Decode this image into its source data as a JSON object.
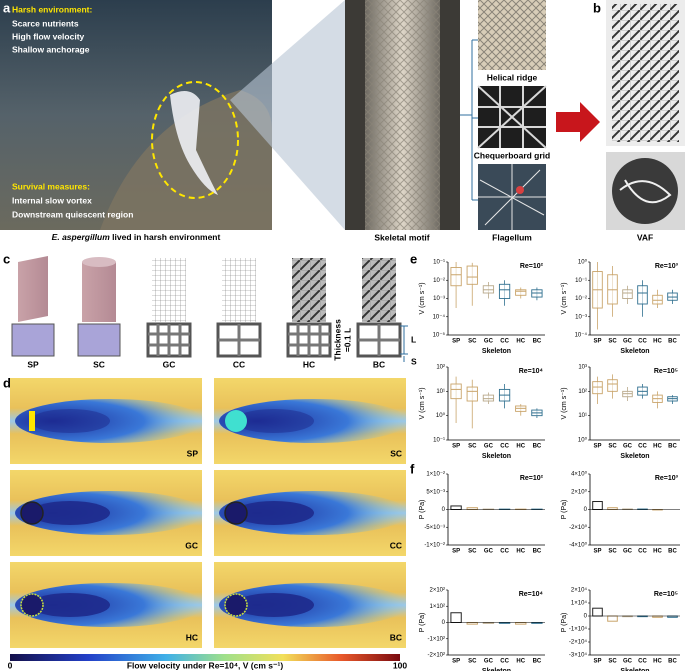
{
  "panels": {
    "a": "a",
    "b": "b",
    "c": "c",
    "d": "d",
    "e": "e",
    "f": "f"
  },
  "photo": {
    "harsh_title": "Harsh environment:",
    "harsh_items": [
      "Scarce nutrients",
      "High flow velocity",
      "Shallow anchorage"
    ],
    "survival_title": "Survival measures:",
    "survival_items": [
      "Internal slow vortex",
      "Downstream quiescent region"
    ],
    "caption_species": "E. aspergillum",
    "caption_rest": "lived in harsh environment"
  },
  "motif": {
    "caption": "Skeletal motif"
  },
  "flagellum": {
    "labels": [
      "Helical ridge",
      "Chequerboard grid"
    ],
    "caption": "Flagellum"
  },
  "vaf": {
    "caption": "VAF"
  },
  "models": {
    "labels": [
      "SP",
      "SC",
      "GC",
      "CC",
      "HC",
      "BC"
    ],
    "thickness": [
      "Thickness",
      "=0.1 L"
    ],
    "l": "L",
    "s": "S"
  },
  "flow": {
    "labels": [
      "SP",
      "SC",
      "GC",
      "CC",
      "HC",
      "BC"
    ],
    "colorbar": {
      "min": 0,
      "title": "Flow velocity under Re=10⁴, V (cm s⁻¹)",
      "max": 100
    }
  },
  "charts": [
    {
      "type": "box",
      "re": "Re=10²",
      "ylabel": "V (cm s⁻¹)",
      "xlabel": "Skeleton",
      "log": true,
      "ylim": [
        1e-05,
        0.1
      ],
      "yticks": [
        {
          "value": 0.1,
          "label": "10⁻¹"
        },
        {
          "value": 0.01,
          "label": "10⁻²"
        },
        {
          "value": 0.001,
          "label": "10⁻³"
        },
        {
          "value": 0.0001,
          "label": "10⁻⁴"
        },
        {
          "value": 1e-05,
          "label": "10⁻⁵"
        }
      ],
      "categories": [
        "SP",
        "SC",
        "GC",
        "CC",
        "HC",
        "BC"
      ],
      "colors": [
        "#c9a46a",
        "#c9a46a",
        "#b8a88a",
        "#2f6f8f",
        "#c9a46a",
        "#2f6f8f"
      ],
      "boxes": [
        [
          0.0003,
          0.005,
          0.02,
          0.05,
          0.1
        ],
        [
          0.0004,
          0.006,
          0.015,
          0.06,
          0.09
        ],
        [
          0.001,
          0.002,
          0.003,
          0.005,
          0.008
        ],
        [
          0.0004,
          0.001,
          0.003,
          0.006,
          0.01
        ],
        [
          0.001,
          0.0015,
          0.0025,
          0.003,
          0.004
        ],
        [
          0.0008,
          0.0012,
          0.002,
          0.003,
          0.004
        ]
      ]
    },
    {
      "type": "box",
      "re": "Re=10³",
      "ylabel": "V (cm s⁻¹)",
      "xlabel": "Skeleton",
      "log": true,
      "ylim": [
        0.0001,
        1
      ],
      "yticks": [
        {
          "value": 1,
          "label": "10⁰"
        },
        {
          "value": 0.1,
          "label": "10⁻¹"
        },
        {
          "value": 0.01,
          "label": "10⁻²"
        },
        {
          "value": 0.001,
          "label": "10⁻³"
        },
        {
          "value": 0.0001,
          "label": "10⁻⁴"
        }
      ],
      "categories": [
        "SP",
        "SC",
        "GC",
        "CC",
        "HC",
        "BC"
      ],
      "colors": [
        "#c9a46a",
        "#c9a46a",
        "#b8a88a",
        "#2f6f8f",
        "#c9a46a",
        "#2f6f8f"
      ],
      "boxes": [
        [
          0.0002,
          0.003,
          0.03,
          0.3,
          1
        ],
        [
          0.001,
          0.005,
          0.03,
          0.2,
          0.6
        ],
        [
          0.005,
          0.01,
          0.02,
          0.03,
          0.05
        ],
        [
          0.001,
          0.005,
          0.02,
          0.05,
          0.1
        ],
        [
          0.003,
          0.005,
          0.008,
          0.015,
          0.03
        ],
        [
          0.005,
          0.008,
          0.012,
          0.02,
          0.03
        ]
      ]
    },
    {
      "type": "box",
      "re": "Re=10⁴",
      "ylabel": "V (cm s⁻¹)",
      "xlabel": "Skeleton",
      "log": true,
      "ylim": [
        0.1,
        100
      ],
      "yticks": [
        {
          "value": 100,
          "label": "10²"
        },
        {
          "value": 10,
          "label": "10¹"
        },
        {
          "value": 1,
          "label": "10⁰"
        },
        {
          "value": 0.1,
          "label": "10⁻¹"
        }
      ],
      "categories": [
        "SP",
        "SC",
        "GC",
        "CC",
        "HC",
        "BC"
      ],
      "colors": [
        "#c9a46a",
        "#c9a46a",
        "#b8a88a",
        "#2f6f8f",
        "#c9a46a",
        "#2f6f8f"
      ],
      "boxes": [
        [
          0.5,
          5,
          12,
          20,
          40
        ],
        [
          0.3,
          4,
          10,
          15,
          30
        ],
        [
          3,
          4,
          5,
          7,
          9
        ],
        [
          2,
          4,
          7,
          12,
          20
        ],
        [
          1,
          1.5,
          2,
          2.5,
          3
        ],
        [
          0.8,
          1,
          1.3,
          1.7,
          2
        ]
      ]
    },
    {
      "type": "box",
      "re": "Re=10⁵",
      "ylabel": "V (cm s⁻¹)",
      "xlabel": "Skeleton",
      "log": true,
      "ylim": [
        1,
        1000
      ],
      "yticks": [
        {
          "value": 1000,
          "label": "10³"
        },
        {
          "value": 100,
          "label": "10²"
        },
        {
          "value": 10,
          "label": "10¹"
        },
        {
          "value": 1,
          "label": "10⁰"
        }
      ],
      "categories": [
        "SP",
        "SC",
        "GC",
        "CC",
        "HC",
        "BC"
      ],
      "colors": [
        "#c9a46a",
        "#c9a46a",
        "#b8a88a",
        "#2f6f8f",
        "#c9a46a",
        "#2f6f8f"
      ],
      "boxes": [
        [
          30,
          80,
          150,
          250,
          400
        ],
        [
          50,
          100,
          200,
          300,
          500
        ],
        [
          40,
          60,
          80,
          100,
          150
        ],
        [
          50,
          70,
          100,
          150,
          200
        ],
        [
          20,
          35,
          50,
          70,
          100
        ],
        [
          30,
          40,
          50,
          60,
          70
        ]
      ]
    },
    {
      "type": "bar",
      "re": "Re=10²",
      "ylabel": "P (Pa)",
      "log": false,
      "ylim": [
        -0.01,
        0.01
      ],
      "yticks": [
        {
          "value": 0.01,
          "label": "1×10⁻²"
        },
        {
          "value": 0.005,
          "label": "5×10⁻³"
        },
        0,
        {
          "value": -0.005,
          "label": "-5×10⁻³"
        },
        {
          "value": -0.01,
          "label": "-1×10⁻²"
        }
      ],
      "categories": [
        "SP",
        "SC",
        "GC",
        "CC",
        "HC",
        "BC"
      ],
      "colors": [
        "#222222",
        "#c9a46a",
        "#b8a88a",
        "#2f6f8f",
        "#c9a46a",
        "#2f6f8f"
      ],
      "values": [
        0.001,
        0.0005,
        0.0001,
        0.0001,
        0.0001,
        0.0001
      ]
    },
    {
      "type": "bar",
      "re": "Re=10³",
      "ylabel": "P (Pa)",
      "log": false,
      "ylim": [
        -4,
        4
      ],
      "yticks": [
        {
          "value": 4,
          "label": "4×10⁰"
        },
        {
          "value": 2,
          "label": "2×10⁰"
        },
        0,
        {
          "value": -2,
          "label": "-2×10⁰"
        },
        {
          "value": -4,
          "label": "-4×10⁰"
        }
      ],
      "categories": [
        "SP",
        "SC",
        "GC",
        "CC",
        "HC",
        "BC"
      ],
      "colors": [
        "#222222",
        "#c9a46a",
        "#b8a88a",
        "#2f6f8f",
        "#c9a46a",
        "#2f6f8f"
      ],
      "values": [
        0.9,
        0.2,
        0.05,
        0.05,
        -0.05,
        0
      ]
    },
    {
      "type": "bar",
      "re": "Re=10⁴",
      "ylabel": "P (Pa)",
      "xlabel": "Skeleton",
      "log": false,
      "ylim": [
        -200,
        200
      ],
      "yticks": [
        {
          "value": 200,
          "label": "2×10²"
        },
        {
          "value": 100,
          "label": "1×10²"
        },
        0,
        {
          "value": -100,
          "label": "-1×10²"
        },
        {
          "value": -200,
          "label": "-2×10²"
        }
      ],
      "categories": [
        "SP",
        "SC",
        "GC",
        "CC",
        "HC",
        "BC"
      ],
      "colors": [
        "#222222",
        "#c9a46a",
        "#b8a88a",
        "#2f6f8f",
        "#c9a46a",
        "#2f6f8f"
      ],
      "values": [
        60,
        -10,
        -5,
        -5,
        -10,
        -5
      ]
    },
    {
      "type": "bar",
      "re": "Re=10⁵",
      "ylabel": "P (Pa)",
      "xlabel": "Skeleton",
      "log": false,
      "ylim": [
        -30000,
        20000
      ],
      "yticks": [
        {
          "value": 20000,
          "label": "2×10⁴"
        },
        {
          "value": 10000,
          "label": "1×10⁴"
        },
        0,
        {
          "value": -10000,
          "label": "-1×10⁴"
        },
        {
          "value": -20000,
          "label": "-2×10⁴"
        },
        {
          "value": -30000,
          "label": "-3×10⁴"
        }
      ],
      "categories": [
        "SP",
        "SC",
        "GC",
        "CC",
        "HC",
        "BC"
      ],
      "colors": [
        "#222222",
        "#c9a46a",
        "#b8a88a",
        "#2f6f8f",
        "#c9a46a",
        "#2f6f8f"
      ],
      "values": [
        6000,
        -4000,
        -500,
        -500,
        -1000,
        -1000
      ]
    }
  ]
}
